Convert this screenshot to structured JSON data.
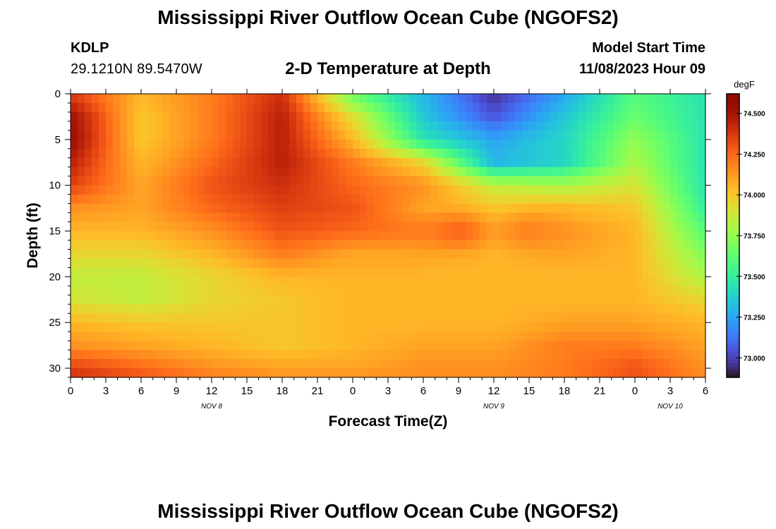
{
  "header": {
    "title": "Mississippi River Outflow Ocean Cube (NGOFS2)",
    "station_id": "KDLP",
    "station_coords": "29.1210N  89.5470W",
    "subtitle": "2-D Temperature at Depth",
    "model_start_label": "Model Start Time",
    "model_start_value": "11/08/2023 Hour 09"
  },
  "footer": {
    "title": "Mississippi River Outflow Ocean Cube (NGOFS2)"
  },
  "chart_data": {
    "type": "heatmap",
    "title": "2-D Temperature at Depth",
    "xlabel": "Forecast Time(Z)",
    "ylabel": "Depth (ft)",
    "x_tick_labels": [
      "0",
      "3",
      "6",
      "9",
      "12",
      "15",
      "18",
      "21",
      "0",
      "3",
      "6",
      "9",
      "12",
      "15",
      "18",
      "21",
      "0",
      "3",
      "6"
    ],
    "x_date_labels": [
      {
        "label": "NOV 8",
        "tick_index": 4
      },
      {
        "label": "NOV 9",
        "tick_index": 12
      },
      {
        "label": "NOV 10",
        "tick_index": 17
      }
    ],
    "x_range_hours": [
      0,
      54
    ],
    "y_ticks": [
      0,
      5,
      10,
      15,
      20,
      25,
      30
    ],
    "y_range": [
      0,
      31
    ],
    "y_inverted": true,
    "colorbar": {
      "unit": "degF",
      "ticks": [
        "74.500",
        "74.250",
        "74.000",
        "73.750",
        "73.500",
        "73.250",
        "73.000"
      ],
      "tick_values": [
        74.5,
        74.25,
        74.0,
        73.75,
        73.5,
        73.25,
        73.0
      ],
      "range": [
        72.88,
        74.62
      ],
      "colormap": "turbo"
    },
    "time_hours": [
      0,
      6,
      12,
      18,
      24,
      30,
      36,
      42,
      48,
      54
    ],
    "depth_ft": [
      0,
      2.5,
      5,
      7.5,
      10,
      12.5,
      15,
      17.5,
      20,
      22.5,
      25,
      27.5,
      30,
      31
    ],
    "temperature_degF": [
      [
        74.35,
        74.05,
        74.2,
        74.4,
        73.65,
        73.3,
        72.95,
        73.25,
        73.6,
        73.45
      ],
      [
        74.52,
        74.0,
        74.2,
        74.45,
        73.92,
        73.35,
        73.05,
        73.35,
        73.65,
        73.45
      ],
      [
        74.55,
        74.0,
        74.2,
        74.45,
        74.05,
        73.45,
        73.25,
        73.4,
        73.75,
        73.45
      ],
      [
        74.45,
        74.05,
        74.25,
        74.45,
        74.2,
        73.95,
        73.3,
        73.4,
        73.8,
        73.45
      ],
      [
        74.35,
        74.1,
        74.3,
        74.4,
        74.25,
        74.15,
        73.85,
        73.8,
        73.9,
        73.45
      ],
      [
        74.15,
        74.1,
        74.25,
        74.35,
        74.3,
        74.1,
        74.0,
        74.05,
        74.0,
        73.5
      ],
      [
        74.05,
        74.05,
        74.15,
        74.3,
        74.25,
        74.2,
        74.1,
        74.15,
        74.05,
        73.6
      ],
      [
        73.95,
        73.95,
        74.05,
        74.2,
        74.1,
        74.1,
        74.05,
        74.1,
        74.05,
        73.7
      ],
      [
        73.85,
        73.85,
        73.95,
        74.05,
        74.05,
        74.05,
        74.05,
        74.05,
        74.05,
        73.8
      ],
      [
        73.9,
        73.85,
        73.95,
        74.0,
        74.05,
        74.05,
        74.05,
        74.05,
        74.05,
        73.95
      ],
      [
        74.05,
        74.0,
        74.0,
        74.0,
        74.05,
        74.05,
        74.05,
        74.1,
        74.1,
        74.05
      ],
      [
        74.15,
        74.1,
        74.05,
        74.0,
        74.05,
        74.1,
        74.1,
        74.2,
        74.2,
        74.1
      ],
      [
        74.35,
        74.25,
        74.15,
        74.1,
        74.1,
        74.15,
        74.15,
        74.2,
        74.3,
        74.15
      ],
      [
        74.4,
        74.3,
        74.2,
        74.15,
        74.15,
        74.15,
        74.15,
        74.2,
        74.3,
        74.15
      ]
    ],
    "features": [
      {
        "depth_ft": 15,
        "time_hours": 33,
        "value": 74.25
      },
      {
        "depth_ft": 15,
        "time_hours": 39,
        "value": 74.18
      }
    ]
  }
}
